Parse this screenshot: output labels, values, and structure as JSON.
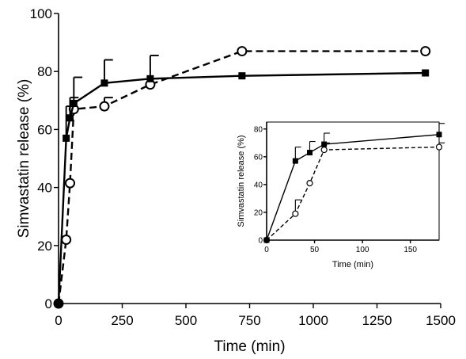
{
  "chart_data": [
    {
      "type": "line",
      "xlabel": "Time (min)",
      "ylabel": "Simvastatin release (%)",
      "xlim": [
        0,
        1500
      ],
      "ylim": [
        0,
        100
      ],
      "xticks": [
        "0",
        "250",
        "500",
        "750",
        "1000",
        "1250",
        "1500"
      ],
      "yticks": [
        "0",
        "20",
        "40",
        "60",
        "80",
        "100"
      ],
      "series": [
        {
          "marker": "filled-square",
          "line_style": "solid",
          "x": [
            0,
            30,
            45,
            60,
            180,
            360,
            720,
            1440
          ],
          "y": [
            0,
            57,
            64,
            69,
            76,
            77.5,
            78.5,
            79.5
          ],
          "error_upper": [
            0,
            11,
            7,
            9,
            8,
            8,
            0,
            0
          ]
        },
        {
          "marker": "open-circle",
          "line_style": "dashed",
          "x": [
            0,
            30,
            45,
            60,
            180,
            360,
            720,
            1440
          ],
          "y": [
            0,
            22,
            41.5,
            67,
            68,
            75.5,
            87,
            87
          ],
          "error_upper": [
            0,
            0,
            0,
            0,
            3,
            2,
            0,
            0
          ]
        }
      ]
    },
    {
      "type": "line",
      "inset": true,
      "xlabel": "Time (min)",
      "ylabel": "Simvastatin release (%)",
      "xlim": [
        0,
        180
      ],
      "ylim": [
        0,
        85
      ],
      "xticks": [
        "0",
        "50",
        "100",
        "150"
      ],
      "yticks": [
        "0",
        "20",
        "40",
        "60",
        "80"
      ],
      "series": [
        {
          "marker": "filled-square",
          "line_style": "solid",
          "x": [
            0,
            30,
            45,
            60,
            180
          ],
          "y": [
            0,
            57,
            63,
            69,
            76
          ],
          "error_upper": [
            0,
            10,
            8,
            8,
            8
          ]
        },
        {
          "marker": "open-circle",
          "line_style": "dashed",
          "x": [
            0,
            30,
            45,
            60,
            180
          ],
          "y": [
            0,
            19,
            41,
            65,
            67
          ],
          "error_upper": [
            0,
            10,
            0,
            5,
            3
          ]
        }
      ]
    }
  ]
}
